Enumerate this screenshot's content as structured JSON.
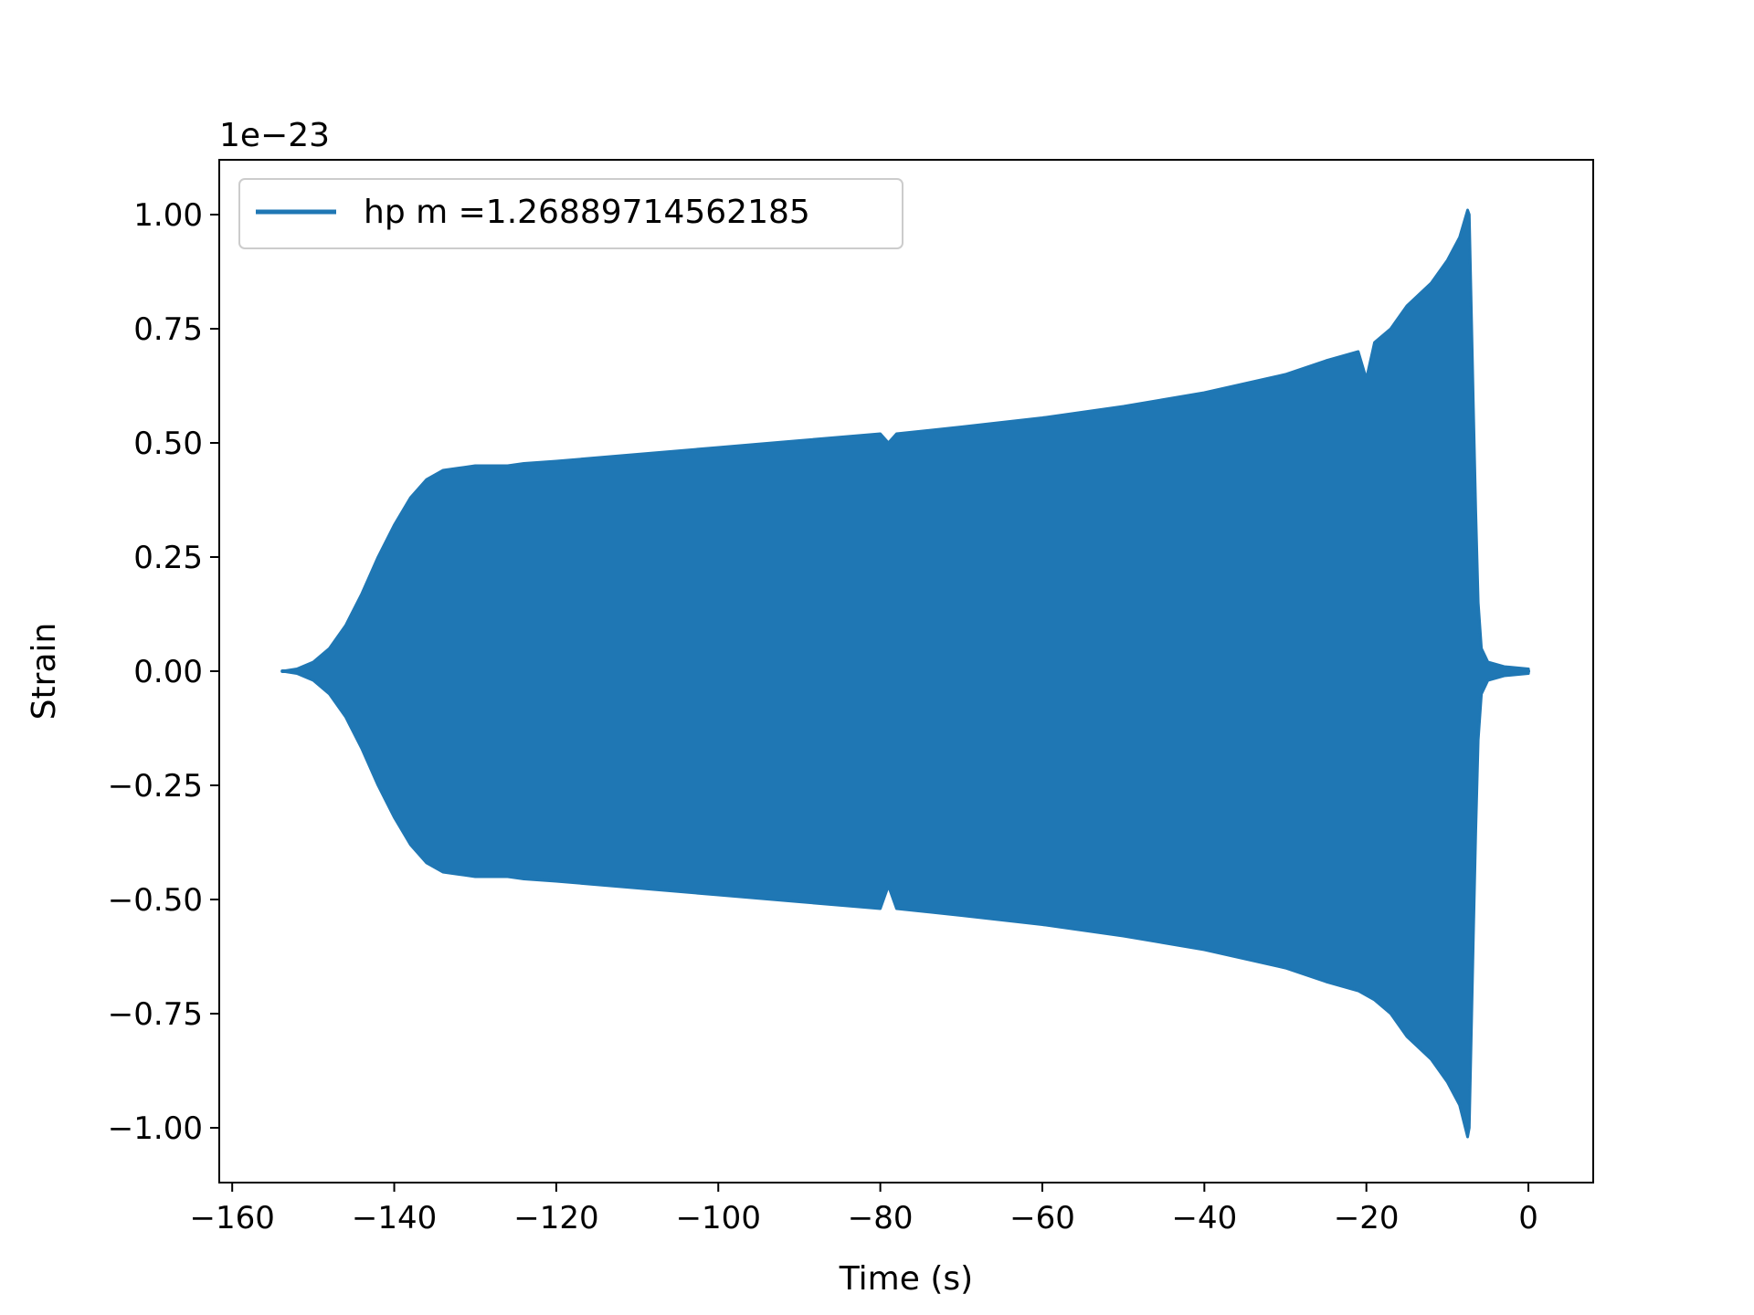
{
  "chart_data": {
    "type": "line",
    "title": "",
    "xlabel": "Time (s)",
    "ylabel": "Strain",
    "y_offset_text": "1e−23",
    "xlim": [
      -161.6,
      8.0
    ],
    "ylim": [
      -1.12,
      1.12
    ],
    "xticks": [
      -160,
      -140,
      -120,
      -100,
      -80,
      -60,
      -40,
      -20,
      0
    ],
    "xtick_labels": [
      "−160",
      "−140",
      "−120",
      "−100",
      "−80",
      "−60",
      "−40",
      "−20",
      "0"
    ],
    "yticks": [
      1.0,
      0.75,
      0.5,
      0.25,
      0.0,
      -0.25,
      -0.5,
      -0.75,
      -1.0
    ],
    "ytick_labels": [
      "1.00",
      "0.75",
      "0.50",
      "0.25",
      "0.00",
      "−0.25",
      "−0.50",
      "−0.75",
      "−1.00"
    ],
    "grid": false,
    "legend": {
      "position": "upper left"
    },
    "series": [
      {
        "name": "hp m =1.26889714562185",
        "color": "#1f77b4",
        "envelope": {
          "t": [
            -153.8,
            -152,
            -150,
            -148,
            -146,
            -144,
            -142,
            -140,
            -138,
            -136,
            -134,
            -132,
            -130,
            -128,
            -126,
            -124,
            -120,
            -110,
            -100,
            -90,
            -80,
            -79,
            -78,
            -70,
            -60,
            -50,
            -40,
            -30,
            -25,
            -21,
            -20,
            -19,
            -17,
            -15,
            -12,
            -10,
            -8.5,
            -7.5,
            -7.3,
            -7.0,
            -6.8,
            -6.5,
            -6.2,
            -5.8,
            -5.0,
            -3.0,
            0.0
          ],
          "upper": [
            0.0,
            0.005,
            0.02,
            0.05,
            0.1,
            0.17,
            0.25,
            0.32,
            0.38,
            0.42,
            0.44,
            0.445,
            0.45,
            0.45,
            0.45,
            0.455,
            0.46,
            0.475,
            0.49,
            0.505,
            0.52,
            0.5,
            0.52,
            0.535,
            0.555,
            0.58,
            0.61,
            0.65,
            0.68,
            0.7,
            0.64,
            0.72,
            0.75,
            0.8,
            0.85,
            0.9,
            0.95,
            1.01,
            1.0,
            0.75,
            0.58,
            0.35,
            0.15,
            0.05,
            0.02,
            0.01,
            0.005
          ],
          "lower": [
            0.0,
            -0.005,
            -0.02,
            -0.05,
            -0.1,
            -0.17,
            -0.25,
            -0.32,
            -0.38,
            -0.42,
            -0.44,
            -0.445,
            -0.45,
            -0.45,
            -0.45,
            -0.455,
            -0.46,
            -0.475,
            -0.49,
            -0.505,
            -0.52,
            -0.47,
            -0.52,
            -0.535,
            -0.555,
            -0.58,
            -0.61,
            -0.65,
            -0.68,
            -0.7,
            -0.71,
            -0.72,
            -0.75,
            -0.8,
            -0.85,
            -0.9,
            -0.95,
            -1.02,
            -1.0,
            -0.75,
            -0.58,
            -0.35,
            -0.15,
            -0.05,
            -0.02,
            -0.01,
            -0.005
          ]
        }
      }
    ]
  }
}
